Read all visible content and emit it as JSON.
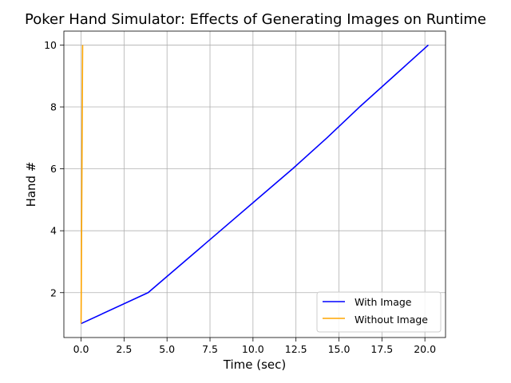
{
  "chart_data": {
    "type": "line",
    "title": "Poker Hand Simulator: Effects of Generating Images on Runtime",
    "xlabel": "Time (sec)",
    "ylabel": "Hand #",
    "xlim": [
      -1.0,
      21.2
    ],
    "ylim": [
      0.55,
      10.45
    ],
    "xticks": [
      0.0,
      2.5,
      5.0,
      7.5,
      10.0,
      12.5,
      15.0,
      17.5,
      20.0
    ],
    "xtick_labels": [
      "0.0",
      "2.5",
      "5.0",
      "7.5",
      "10.0",
      "12.5",
      "15.0",
      "17.5",
      "20.0"
    ],
    "yticks": [
      2,
      4,
      6,
      8,
      10
    ],
    "ytick_labels": [
      "2",
      "4",
      "6",
      "8",
      "10"
    ],
    "grid": true,
    "legend_position": "lower-right",
    "series": [
      {
        "name": "With Image",
        "color": "#0000ff",
        "x": [
          0.0,
          3.9,
          6.0,
          8.1,
          10.2,
          12.3,
          14.3,
          16.2,
          18.2,
          20.2
        ],
        "y": [
          1,
          2,
          3,
          4,
          5,
          6,
          7,
          8,
          9,
          10
        ]
      },
      {
        "name": "Without Image",
        "color": "#ffa500",
        "x": [
          0.0,
          0.01,
          0.02,
          0.03,
          0.04,
          0.05,
          0.06,
          0.07,
          0.08,
          0.09
        ],
        "y": [
          1,
          2,
          3,
          4,
          5,
          6,
          7,
          8,
          9,
          10
        ]
      }
    ]
  }
}
